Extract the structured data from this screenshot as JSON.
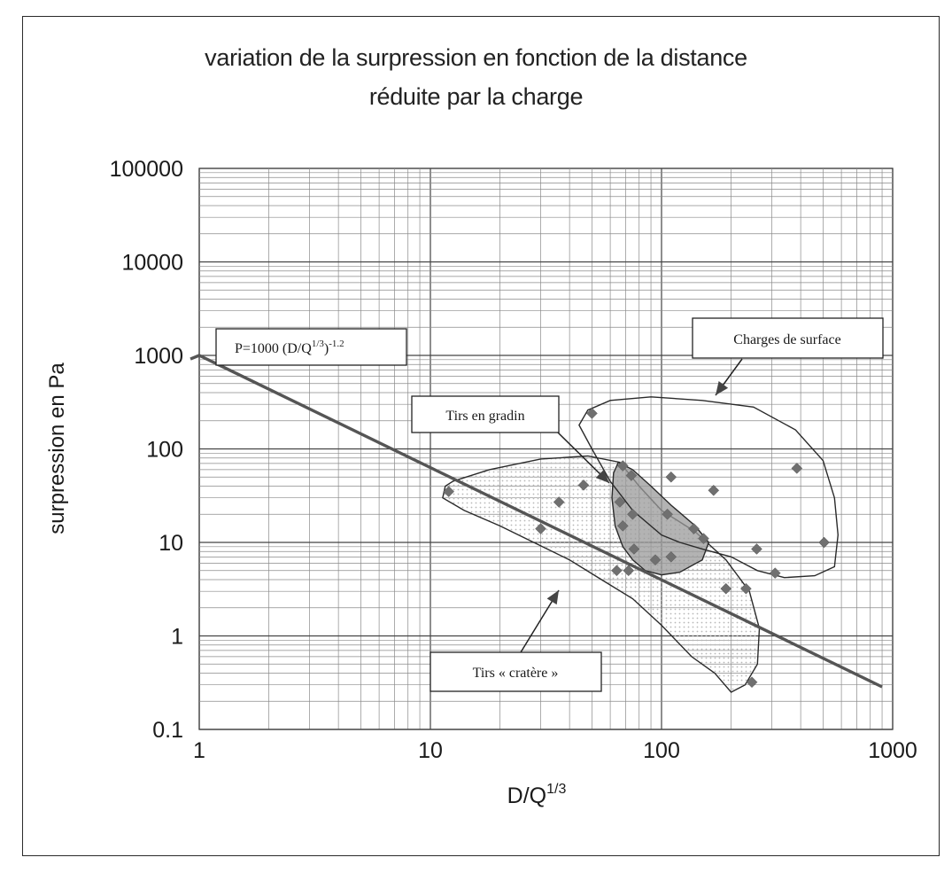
{
  "chart_data": {
    "type": "scatter",
    "title_line1": "variation de la surpression en fonction de la distance",
    "title_line2": "réduite par la charge",
    "xlabel": "D/Q",
    "xlabel_sup": "1/3",
    "ylabel": "surpression en Pa",
    "x_scale": "log",
    "y_scale": "log",
    "xlim": [
      1,
      1000
    ],
    "ylim": [
      0.1,
      100000
    ],
    "x_ticks": [
      1,
      10,
      100,
      1000
    ],
    "x_tick_labels": [
      "1",
      "10",
      "100",
      "1000"
    ],
    "y_ticks": [
      0.1,
      1,
      10,
      100,
      1000,
      10000,
      100000
    ],
    "y_tick_labels": [
      "0.1",
      "1",
      "10",
      "100",
      "1000",
      "10000",
      "100000"
    ],
    "grid": true,
    "fit_line": {
      "label": "P=1000 (D/Q1/3)-1.2",
      "coefficient": 1000,
      "exponent": -1.2,
      "x_range": [
        1,
        900
      ]
    },
    "points": [
      {
        "x": 12,
        "y": 35
      },
      {
        "x": 30,
        "y": 14
      },
      {
        "x": 36,
        "y": 27
      },
      {
        "x": 46,
        "y": 41
      },
      {
        "x": 50,
        "y": 240
      },
      {
        "x": 64,
        "y": 5
      },
      {
        "x": 66,
        "y": 27
      },
      {
        "x": 68,
        "y": 66
      },
      {
        "x": 68,
        "y": 15
      },
      {
        "x": 72,
        "y": 5
      },
      {
        "x": 74,
        "y": 52
      },
      {
        "x": 75,
        "y": 20
      },
      {
        "x": 76,
        "y": 8.5
      },
      {
        "x": 94,
        "y": 6.5
      },
      {
        "x": 106,
        "y": 20
      },
      {
        "x": 110,
        "y": 50
      },
      {
        "x": 110,
        "y": 7
      },
      {
        "x": 138,
        "y": 14
      },
      {
        "x": 152,
        "y": 11
      },
      {
        "x": 168,
        "y": 36
      },
      {
        "x": 190,
        "y": 3.2
      },
      {
        "x": 232,
        "y": 3.2
      },
      {
        "x": 246,
        "y": 0.32
      },
      {
        "x": 258,
        "y": 8.5
      },
      {
        "x": 310,
        "y": 4.7
      },
      {
        "x": 385,
        "y": 62
      },
      {
        "x": 505,
        "y": 10
      }
    ],
    "regions": [
      {
        "name": "Tirs « cratère »",
        "shaded": "dotted",
        "outline": [
          [
            12.5,
            45
          ],
          [
            18,
            60
          ],
          [
            30,
            78
          ],
          [
            48,
            84
          ],
          [
            66,
            72
          ],
          [
            80,
            40
          ],
          [
            100,
            22
          ],
          [
            140,
            13
          ],
          [
            190,
            6.5
          ],
          [
            240,
            3
          ],
          [
            265,
            1.2
          ],
          [
            260,
            0.5
          ],
          [
            230,
            0.3
          ],
          [
            200,
            0.25
          ],
          [
            170,
            0.4
          ],
          [
            135,
            0.6
          ],
          [
            100,
            1.3
          ],
          [
            75,
            2.5
          ],
          [
            55,
            4
          ],
          [
            40,
            6.5
          ],
          [
            28,
            10
          ],
          [
            20,
            15
          ],
          [
            14,
            22
          ],
          [
            11.3,
            30
          ],
          [
            11.6,
            40
          ]
        ]
      },
      {
        "name": "Tirs en gradin",
        "shaded": "solid",
        "outline": [
          [
            65,
            72
          ],
          [
            75,
            60
          ],
          [
            90,
            40
          ],
          [
            110,
            25
          ],
          [
            140,
            15
          ],
          [
            160,
            10
          ],
          [
            150,
            6.5
          ],
          [
            120,
            4.8
          ],
          [
            100,
            4.5
          ],
          [
            85,
            5
          ],
          [
            75,
            6.5
          ],
          [
            68,
            9
          ],
          [
            63,
            15
          ],
          [
            61,
            30
          ],
          [
            62,
            55
          ]
        ]
      },
      {
        "name": "Charges de surface",
        "shaded": "none",
        "outline": [
          [
            44,
            180
          ],
          [
            48,
            260
          ],
          [
            60,
            330
          ],
          [
            90,
            360
          ],
          [
            150,
            330
          ],
          [
            250,
            280
          ],
          [
            380,
            160
          ],
          [
            500,
            75
          ],
          [
            560,
            30
          ],
          [
            580,
            12
          ],
          [
            560,
            5.5
          ],
          [
            460,
            4.4
          ],
          [
            340,
            4.2
          ],
          [
            260,
            5
          ],
          [
            200,
            7
          ],
          [
            150,
            8.5
          ],
          [
            120,
            10
          ],
          [
            100,
            12
          ],
          [
            75,
            22
          ],
          [
            60,
            45
          ],
          [
            50,
            100
          ]
        ]
      }
    ],
    "annotations": {
      "fit_box": "P=1000 (D/Q",
      "fit_box_sup1": "1/3",
      "fit_box_close": ")",
      "fit_box_sup2": "-1.2",
      "surface_box": "Charges de surface",
      "gradin_box": "Tirs en gradin",
      "cratere_box": "Tirs « cratère »"
    }
  },
  "colors": {
    "line": "#555555",
    "grid": "#8a8a8a",
    "marker": "#707070",
    "gradin_fill": "#9a9a9a",
    "dots": "#b8b8b8",
    "text": "#1a1a1a"
  }
}
